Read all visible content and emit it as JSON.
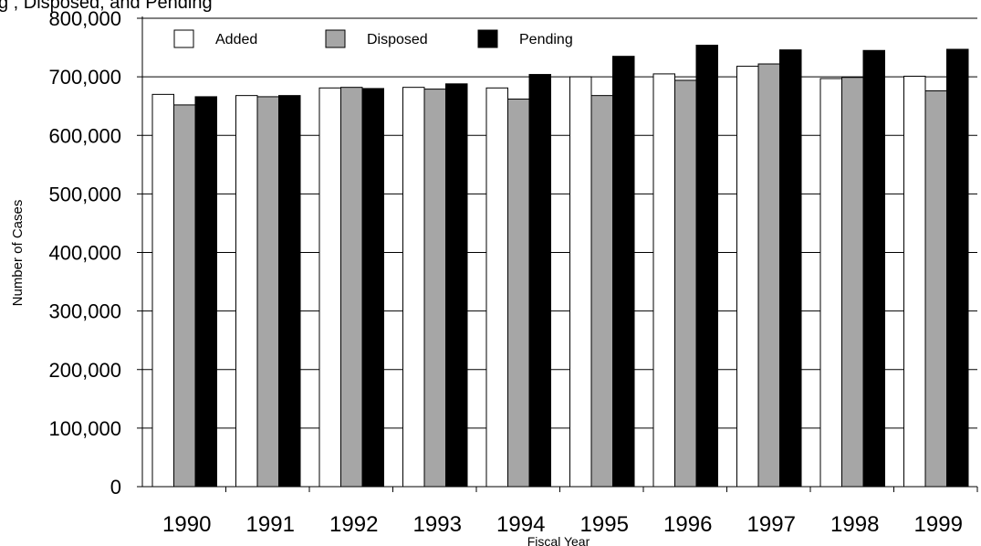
{
  "title_fragment": "g                        , Disposed, and Pending",
  "chart_data": {
    "type": "bar",
    "title": "",
    "xlabel": "Fiscal Year",
    "ylabel": "Number of Cases",
    "ylim": [
      0,
      800000
    ],
    "yticks": [
      0,
      100000,
      200000,
      300000,
      400000,
      500000,
      600000,
      700000,
      800000
    ],
    "ytick_labels": [
      "0",
      "100,000",
      "200,000",
      "300,000",
      "400,000",
      "500,000",
      "600,000",
      "700,000",
      "800,000"
    ],
    "categories": [
      "1990",
      "1991",
      "1992",
      "1993",
      "1994",
      "1995",
      "1996",
      "1997",
      "1998",
      "1999"
    ],
    "grid": "horizontal",
    "legend_position": "top-left",
    "series": [
      {
        "name": "Added",
        "color": "#ffffff",
        "values": [
          670000,
          668000,
          681000,
          682000,
          681000,
          700000,
          705000,
          718000,
          697000,
          701000
        ]
      },
      {
        "name": "Disposed",
        "color": "#a6a6a6",
        "values": [
          652000,
          666000,
          682000,
          679000,
          662000,
          668000,
          694000,
          722000,
          699000,
          676000
        ]
      },
      {
        "name": "Pending",
        "color": "#000000",
        "values": [
          666000,
          668000,
          680000,
          688000,
          704000,
          735000,
          754000,
          746000,
          745000,
          747000
        ]
      }
    ]
  }
}
